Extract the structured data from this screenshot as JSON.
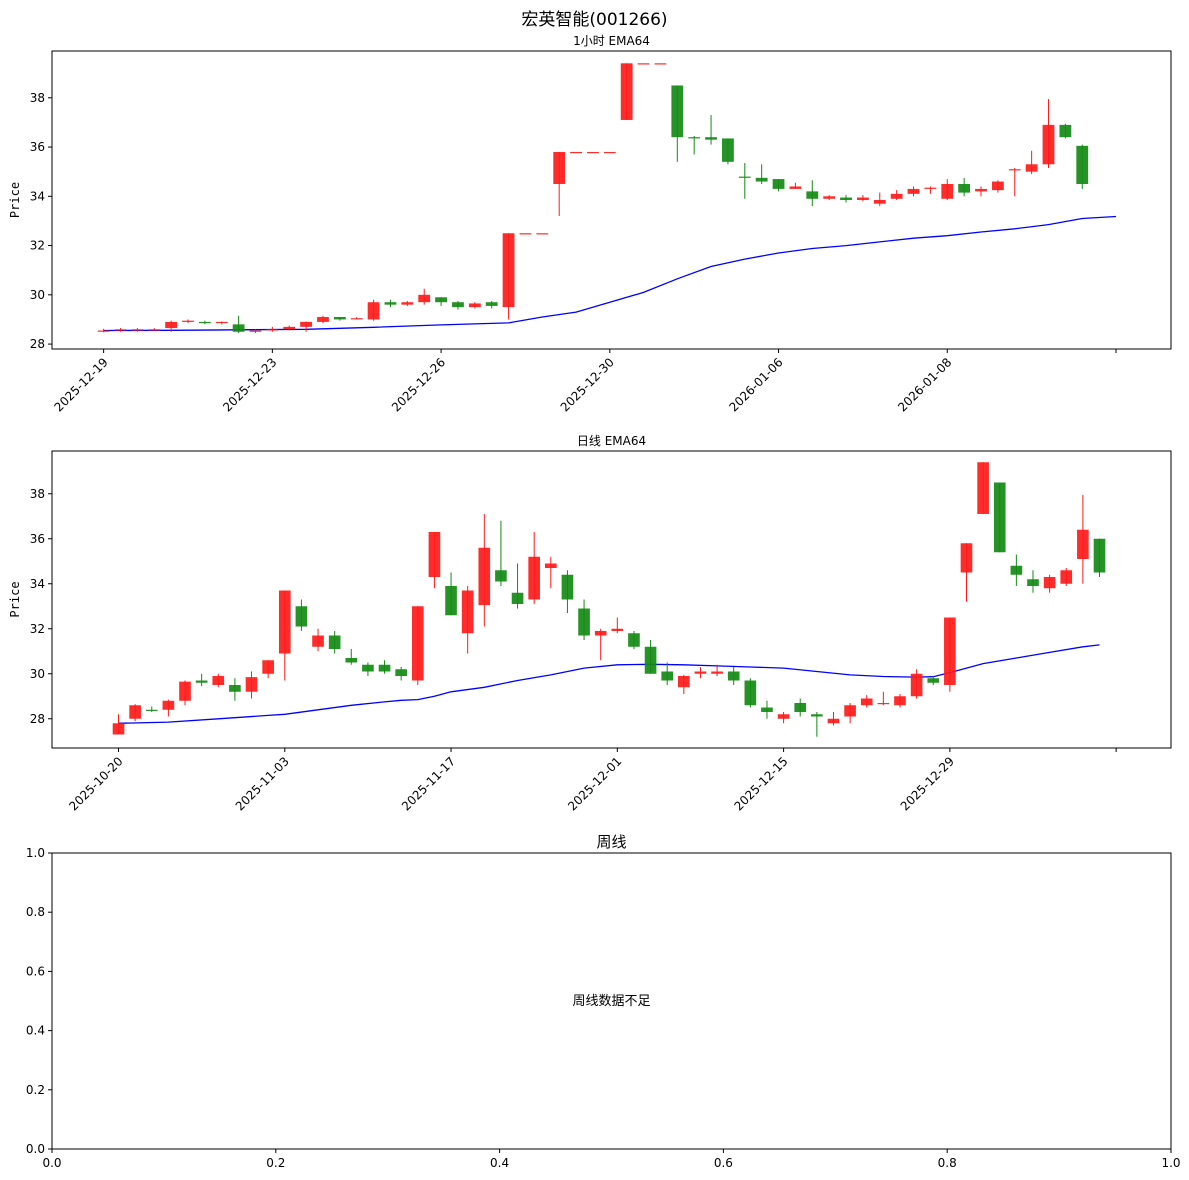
{
  "page": {
    "title": "宏英智能(001266)"
  },
  "chart_data": [
    {
      "type": "candlestick",
      "title": "1小时 EMA64",
      "ylabel": "Price",
      "ylim": [
        27.8,
        39.9
      ],
      "yticks": [
        28,
        30,
        32,
        34,
        36,
        38
      ],
      "xtick_labels": [
        "2025-12-19",
        "2025-12-23",
        "2025-12-26",
        "2025-12-30",
        "2026-01-06",
        "2026-01-08",
        ""
      ],
      "xtick_index": [
        0,
        10,
        20,
        30,
        40,
        50,
        60
      ],
      "xlim": [
        -3.06,
        63.26
      ],
      "candles": [
        [
          28.5,
          28.55,
          28.62,
          28.48
        ],
        [
          28.55,
          28.6,
          28.65,
          28.5
        ],
        [
          28.55,
          28.6,
          28.65,
          28.5
        ],
        [
          28.6,
          28.6,
          28.65,
          28.55
        ],
        [
          28.65,
          28.9,
          28.95,
          28.5
        ],
        [
          28.9,
          28.95,
          29.0,
          28.85
        ],
        [
          28.9,
          28.85,
          28.95,
          28.8
        ],
        [
          28.85,
          28.9,
          28.92,
          28.8
        ],
        [
          28.8,
          28.5,
          29.15,
          28.45
        ],
        [
          28.5,
          28.55,
          28.6,
          28.45
        ],
        [
          28.55,
          28.6,
          28.7,
          28.5
        ],
        [
          28.6,
          28.7,
          28.75,
          28.55
        ],
        [
          28.7,
          28.9,
          28.92,
          28.5
        ],
        [
          28.9,
          29.1,
          29.15,
          28.85
        ],
        [
          29.1,
          29.0,
          29.1,
          28.95
        ],
        [
          29.05,
          29.05,
          29.1,
          29.0
        ],
        [
          29.0,
          29.7,
          29.8,
          28.95
        ],
        [
          29.7,
          29.6,
          29.8,
          29.5
        ],
        [
          29.6,
          29.7,
          29.75,
          29.55
        ],
        [
          29.7,
          30.0,
          30.25,
          29.6
        ],
        [
          29.9,
          29.7,
          29.9,
          29.55
        ],
        [
          29.7,
          29.5,
          29.75,
          29.4
        ],
        [
          29.5,
          29.65,
          29.7,
          29.45
        ],
        [
          29.7,
          29.55,
          29.75,
          29.45
        ],
        [
          29.5,
          32.5,
          32.5,
          29.0
        ],
        [
          32.5,
          32.5,
          32.5,
          32.5
        ],
        [
          32.5,
          32.5,
          32.5,
          32.5
        ],
        [
          34.5,
          35.8,
          35.8,
          33.2
        ],
        [
          35.8,
          35.8,
          35.8,
          35.8
        ],
        [
          35.8,
          35.8,
          35.8,
          35.8
        ],
        [
          35.8,
          35.8,
          35.8,
          35.8
        ],
        [
          37.1,
          39.4,
          39.4,
          37.1
        ],
        [
          39.4,
          39.4,
          39.4,
          39.4
        ],
        [
          39.4,
          39.4,
          39.4,
          39.4
        ],
        [
          38.5,
          36.4,
          38.5,
          35.4
        ],
        [
          36.4,
          36.35,
          36.45,
          35.7
        ],
        [
          36.4,
          36.3,
          37.3,
          36.1
        ],
        [
          36.35,
          35.4,
          36.35,
          35.3
        ],
        [
          34.8,
          34.75,
          35.35,
          33.9
        ],
        [
          34.75,
          34.6,
          35.3,
          34.5
        ],
        [
          34.7,
          34.3,
          34.7,
          34.2
        ],
        [
          34.3,
          34.4,
          34.55,
          34.3
        ],
        [
          34.2,
          33.9,
          34.65,
          33.6
        ],
        [
          33.9,
          34.0,
          34.05,
          33.85
        ],
        [
          33.95,
          33.85,
          34.05,
          33.75
        ],
        [
          33.85,
          33.95,
          34.05,
          33.8
        ],
        [
          33.7,
          33.85,
          34.15,
          33.6
        ],
        [
          33.9,
          34.1,
          34.25,
          33.85
        ],
        [
          34.1,
          34.3,
          34.4,
          34.0
        ],
        [
          34.3,
          34.35,
          34.4,
          34.1
        ],
        [
          33.9,
          34.5,
          34.7,
          33.85
        ],
        [
          34.5,
          34.15,
          34.75,
          34.0
        ],
        [
          34.2,
          34.3,
          34.4,
          34.0
        ],
        [
          34.25,
          34.6,
          34.65,
          34.15
        ],
        [
          35.1,
          35.1,
          35.15,
          34.0
        ],
        [
          35.0,
          35.3,
          35.85,
          34.9
        ],
        [
          35.3,
          36.9,
          37.95,
          35.15
        ],
        [
          36.9,
          36.4,
          36.95,
          36.35
        ],
        [
          36.05,
          34.5,
          36.1,
          34.3
        ]
      ],
      "series": [
        {
          "type": "line",
          "color": "#0000ff",
          "x": [
            0,
            4,
            8,
            12,
            16,
            20,
            22,
            24,
            26,
            28,
            30,
            32,
            34,
            36,
            38,
            40,
            42,
            44,
            46,
            48,
            50,
            52,
            54,
            56,
            58,
            60
          ],
          "values": [
            28.55,
            28.56,
            28.58,
            28.6,
            28.68,
            28.78,
            28.82,
            28.86,
            29.1,
            29.3,
            29.7,
            30.1,
            30.65,
            31.15,
            31.45,
            31.7,
            31.88,
            32.0,
            32.15,
            32.3,
            32.4,
            32.55,
            32.68,
            32.85,
            33.1,
            33.18
          ]
        }
      ]
    },
    {
      "type": "candlestick",
      "title": "日线 EMA64",
      "ylabel": "Price",
      "ylim": [
        26.7,
        39.9
      ],
      "yticks": [
        28,
        30,
        32,
        34,
        36,
        38
      ],
      "xtick_labels": [
        "2025-10-20",
        "2025-11-03",
        "2025-11-17",
        "2025-12-01",
        "2025-12-15",
        "2025-12-29",
        ""
      ],
      "xtick_index": [
        0,
        10,
        20,
        30,
        40,
        50,
        60
      ],
      "xlim": [
        -4,
        63.3
      ],
      "candles": [
        [
          27.3,
          27.8,
          28.2,
          27.3
        ],
        [
          28.0,
          28.6,
          28.65,
          27.9
        ],
        [
          28.4,
          28.35,
          28.55,
          28.3
        ],
        [
          28.4,
          28.8,
          28.85,
          28.1
        ],
        [
          28.8,
          29.65,
          29.7,
          28.6
        ],
        [
          29.7,
          29.6,
          30.0,
          29.45
        ],
        [
          29.5,
          29.9,
          30.0,
          29.4
        ],
        [
          29.5,
          29.2,
          29.8,
          28.8
        ],
        [
          29.2,
          29.85,
          30.1,
          28.9
        ],
        [
          30.0,
          30.6,
          30.6,
          29.8
        ],
        [
          30.9,
          33.7,
          33.7,
          29.7
        ],
        [
          33.0,
          32.1,
          33.3,
          31.9
        ],
        [
          31.2,
          31.7,
          32.0,
          31.0
        ],
        [
          31.7,
          31.1,
          31.9,
          30.9
        ],
        [
          30.7,
          30.5,
          31.1,
          30.4
        ],
        [
          30.4,
          30.1,
          30.5,
          29.9
        ],
        [
          30.4,
          30.1,
          30.6,
          30.0
        ],
        [
          30.2,
          29.9,
          30.3,
          29.7
        ],
        [
          29.7,
          33.0,
          33.0,
          29.5
        ],
        [
          34.3,
          36.3,
          36.3,
          33.8
        ],
        [
          33.9,
          32.6,
          34.5,
          32.6
        ],
        [
          31.8,
          33.7,
          33.9,
          30.9
        ],
        [
          33.05,
          35.6,
          37.1,
          32.1
        ],
        [
          34.6,
          34.1,
          36.8,
          33.9
        ],
        [
          33.6,
          33.1,
          34.9,
          32.9
        ],
        [
          33.3,
          35.2,
          36.3,
          33.1
        ],
        [
          34.7,
          34.9,
          35.2,
          33.8
        ],
        [
          34.4,
          33.3,
          34.6,
          32.7
        ],
        [
          32.9,
          31.7,
          33.3,
          31.5
        ],
        [
          31.7,
          31.9,
          32.0,
          30.6
        ],
        [
          31.9,
          32.0,
          32.5,
          31.8
        ],
        [
          31.8,
          31.2,
          31.9,
          31.1
        ],
        [
          31.2,
          30.0,
          31.5,
          30.0
        ],
        [
          30.1,
          29.7,
          30.5,
          29.5
        ],
        [
          29.4,
          29.9,
          29.95,
          29.1
        ],
        [
          30.0,
          30.1,
          30.3,
          29.8
        ],
        [
          30.0,
          30.1,
          30.4,
          29.9
        ],
        [
          30.1,
          29.7,
          30.3,
          29.5
        ],
        [
          29.7,
          28.6,
          29.8,
          28.5
        ],
        [
          28.5,
          28.3,
          28.8,
          28.0
        ],
        [
          28.0,
          28.2,
          28.3,
          27.8
        ],
        [
          28.7,
          28.3,
          28.9,
          28.1
        ],
        [
          28.2,
          28.1,
          28.3,
          27.2
        ],
        [
          27.8,
          28.0,
          28.3,
          27.7
        ],
        [
          28.1,
          28.6,
          28.7,
          27.8
        ],
        [
          28.6,
          28.9,
          29.05,
          28.5
        ],
        [
          28.7,
          28.7,
          29.2,
          28.6
        ],
        [
          28.6,
          29.0,
          29.1,
          28.5
        ],
        [
          29.0,
          30.0,
          30.2,
          28.9
        ],
        [
          29.8,
          29.6,
          29.9,
          29.5
        ],
        [
          29.5,
          32.5,
          32.5,
          29.2
        ],
        [
          34.5,
          35.8,
          35.8,
          33.2
        ],
        [
          37.1,
          39.4,
          39.4,
          37.1
        ],
        [
          38.5,
          35.4,
          38.5,
          35.4
        ],
        [
          34.8,
          34.4,
          35.3,
          33.9
        ],
        [
          34.2,
          33.9,
          34.6,
          33.6
        ],
        [
          33.8,
          34.3,
          34.4,
          33.6
        ],
        [
          34.0,
          34.6,
          34.7,
          33.9
        ],
        [
          35.1,
          36.4,
          37.95,
          34.0
        ],
        [
          36.0,
          34.5,
          36.0,
          34.3
        ]
      ],
      "series": [
        {
          "type": "line",
          "color": "#0000ff",
          "x": [
            0,
            3,
            6,
            9,
            10,
            12,
            14,
            16,
            17,
            18,
            19,
            20,
            22,
            24,
            26,
            28,
            30,
            32,
            34,
            36,
            38,
            40,
            42,
            44,
            46,
            48,
            49,
            50,
            52,
            54,
            56,
            58,
            59
          ],
          "values": [
            27.8,
            27.85,
            28.0,
            28.15,
            28.2,
            28.4,
            28.6,
            28.75,
            28.82,
            28.85,
            29.0,
            29.2,
            29.4,
            29.7,
            29.95,
            30.25,
            30.4,
            30.42,
            30.4,
            30.35,
            30.3,
            30.25,
            30.1,
            29.95,
            29.88,
            29.85,
            29.87,
            30.05,
            30.45,
            30.7,
            30.95,
            31.2,
            31.28
          ]
        }
      ]
    },
    {
      "type": "empty",
      "title": "周线",
      "message": "周线数据不足",
      "xlim": [
        0,
        1
      ],
      "ylim": [
        0,
        1
      ],
      "xtick_labels": [
        "0.0",
        "0.2",
        "0.4",
        "0.6",
        "0.8",
        "1.0"
      ],
      "ytick_labels": [
        "0.0",
        "0.2",
        "0.4",
        "0.6",
        "0.8",
        "1.0"
      ],
      "ticks": [
        0,
        0.2,
        0.4,
        0.6,
        0.8,
        1.0
      ]
    }
  ],
  "colors": {
    "up": "#ff1a1a",
    "down": "#138a13",
    "ema": "#0000ff"
  }
}
